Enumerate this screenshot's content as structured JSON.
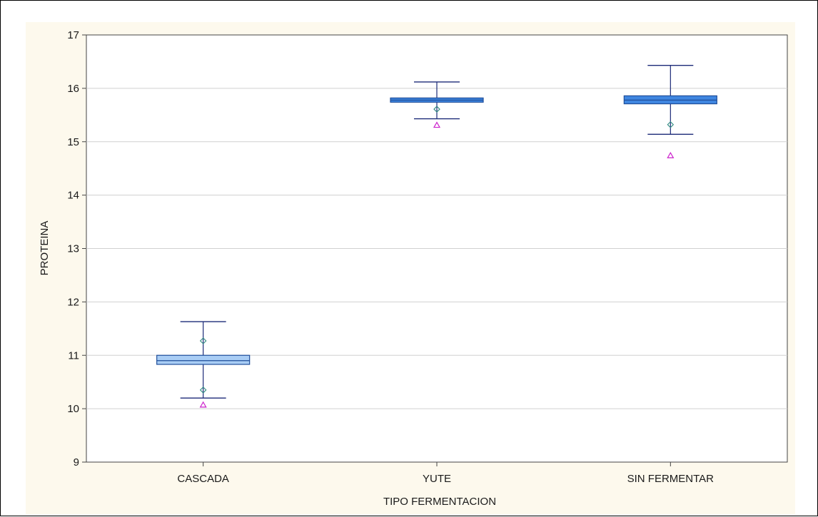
{
  "chart_data": {
    "type": "box",
    "title": "",
    "xlabel": "TIPO FERMENTACION",
    "ylabel": "PROTEINA",
    "ylim": [
      9,
      17
    ],
    "yticks": [
      9,
      10,
      11,
      12,
      13,
      14,
      15,
      16,
      17
    ],
    "grid": "horizontal",
    "categories": [
      "CASCADA",
      "YUTE",
      "SIN FERMENTAR"
    ],
    "boxes": [
      {
        "category": "CASCADA",
        "median": 10.9,
        "q1": 10.83,
        "q3": 11.0,
        "whisker_low": 10.2,
        "whisker_high": 11.63,
        "outliers": [
          10.35,
          11.27
        ],
        "extremes": [
          10.07
        ]
      },
      {
        "category": "YUTE",
        "median": 15.78,
        "q1": 15.74,
        "q3": 15.82,
        "whisker_low": 15.43,
        "whisker_high": 16.12,
        "outliers": [
          15.61
        ],
        "extremes": [
          15.31
        ]
      },
      {
        "category": "SIN FERMENTAR",
        "median": 15.78,
        "q1": 15.71,
        "q3": 15.86,
        "whisker_low": 15.14,
        "whisker_high": 16.43,
        "outliers": [
          15.32
        ],
        "extremes": [
          14.74
        ]
      }
    ],
    "colors": {
      "background": "#fdf9ed",
      "plot_area": "#ffffff",
      "box_light_fill": "#a9cdf5",
      "box_dark_fill": "#3f86e0",
      "box_edge": "#1f4e9a",
      "whisker": "#1c2a78",
      "outlier": "#2f8a80",
      "extreme": "#cc22cc",
      "grid": "#d0d0d0"
    }
  }
}
